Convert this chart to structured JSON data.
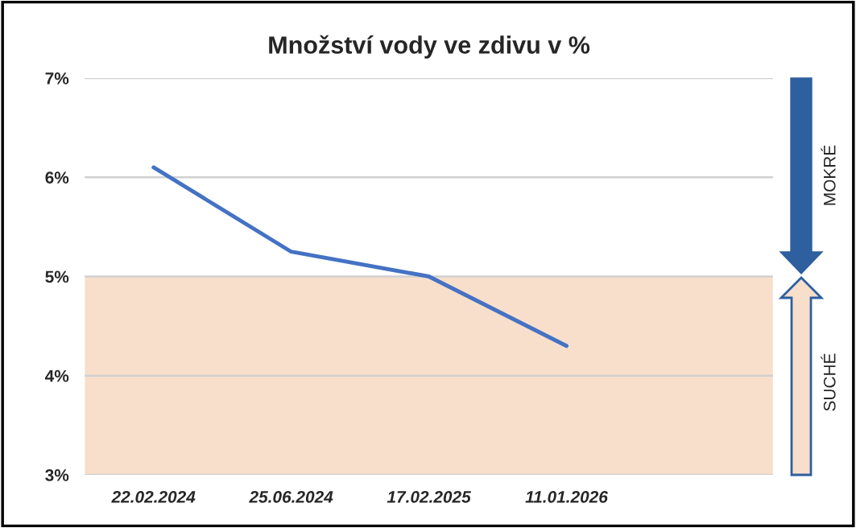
{
  "chart_data": {
    "type": "line",
    "title": "Množství vody ve zdivu v %",
    "categories": [
      "22.02.2024",
      "25.06.2024",
      "17.02.2025",
      "11.01.2026",
      null
    ],
    "series": [
      {
        "color": "#4472c4",
        "values": [
          6.1,
          5.25,
          5.0,
          4.3,
          null
        ]
      }
    ],
    "ylim": [
      3,
      7
    ],
    "yticks": [
      {
        "value": 3,
        "label": "3%"
      },
      {
        "value": 4,
        "label": "4%"
      },
      {
        "value": 5,
        "label": "5%"
      },
      {
        "value": 6,
        "label": "6%"
      },
      {
        "value": 7,
        "label": "7%"
      }
    ],
    "grid": "y",
    "marker": "none",
    "line_style": "solid",
    "legend": false,
    "bands": [
      {
        "axis": "y",
        "from": 3,
        "to": 5,
        "color": "#f8dfcc"
      }
    ],
    "annotations": [
      "MOKRÉ",
      "SUCHÉ"
    ]
  }
}
